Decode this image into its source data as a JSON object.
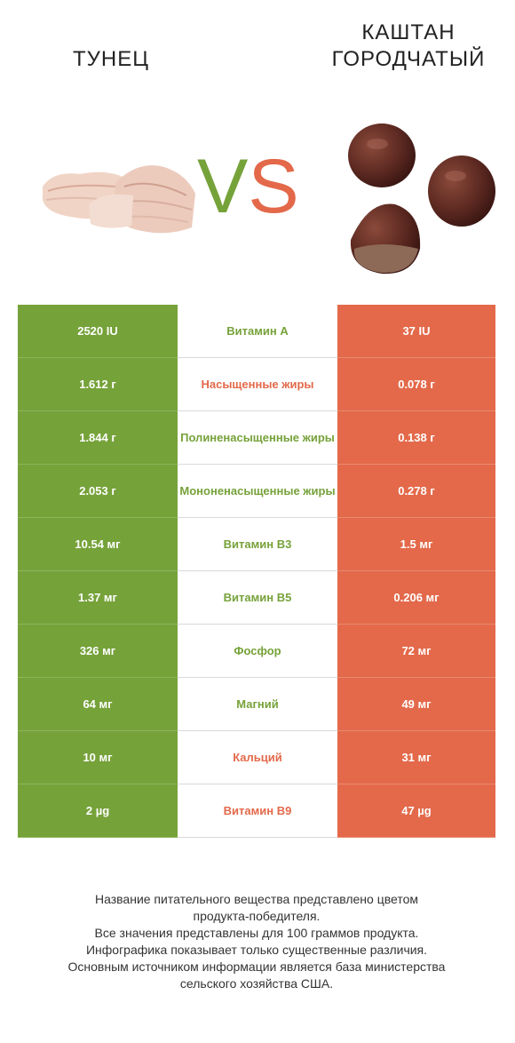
{
  "header": {
    "left_title": "ТУНЕЦ",
    "right_title_line1": "КАШТАН",
    "right_title_line2": "ГОРОДЧАТЫЙ",
    "vs_v": "V",
    "vs_s": "S"
  },
  "colors": {
    "left_winner": "#76a23a",
    "right_winner": "#e3694a"
  },
  "rows": [
    {
      "left": "2520 IU",
      "name": "Витамин A",
      "right": "37 IU",
      "winner": "left"
    },
    {
      "left": "1.612 г",
      "name": "Насыщенные жиры",
      "right": "0.078 г",
      "winner": "right"
    },
    {
      "left": "1.844 г",
      "name": "Полиненасыщенные жиры",
      "right": "0.138 г",
      "winner": "left"
    },
    {
      "left": "2.053 г",
      "name": "Мононенасыщенные жиры",
      "right": "0.278 г",
      "winner": "left"
    },
    {
      "left": "10.54 мг",
      "name": "Витамин B3",
      "right": "1.5 мг",
      "winner": "left"
    },
    {
      "left": "1.37 мг",
      "name": "Витамин B5",
      "right": "0.206 мг",
      "winner": "left"
    },
    {
      "left": "326 мг",
      "name": "Фосфор",
      "right": "72 мг",
      "winner": "left"
    },
    {
      "left": "64 мг",
      "name": "Магний",
      "right": "49 мг",
      "winner": "left"
    },
    {
      "left": "10 мг",
      "name": "Кальций",
      "right": "31 мг",
      "winner": "right"
    },
    {
      "left": "2 µg",
      "name": "Витамин B9",
      "right": "47 µg",
      "winner": "right"
    }
  ],
  "footer": {
    "line1": "Название питательного вещества представлено цветом",
    "line2": "продукта-победителя.",
    "line3": "Все значения представлены для 100 граммов продукта.",
    "line4": "Инфографика показывает только существенные различия.",
    "line5": "Основным источником информации является база министерства",
    "line6": "сельского хозяйства США."
  }
}
